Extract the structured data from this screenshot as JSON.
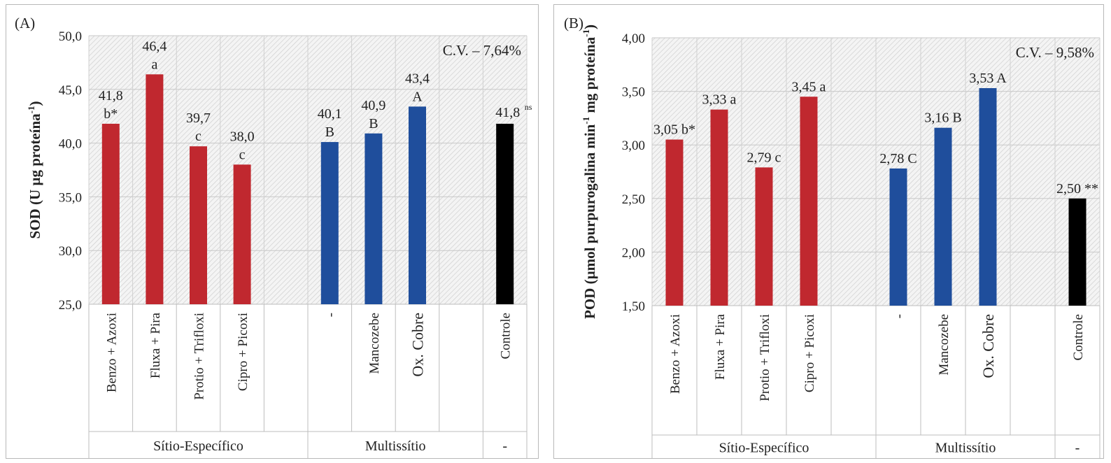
{
  "charts": [
    {
      "panel_label": "(A)",
      "cv": "C.V. – 7,64%",
      "ylabel_main": "SOD (U µg proteína",
      "ylabel_sup": "-1",
      "ylabel_end": ")",
      "yticks": [
        "50,0",
        "45,0",
        "40,0",
        "35,0",
        "30,0",
        "25,0"
      ],
      "groups": [
        "Sítio-Específico",
        "Multissítio",
        "-"
      ]
    },
    {
      "panel_label": "(B)",
      "cv": "C.V. – 9,58%",
      "ylabel_main": "POD (µmol purpurogalina  min",
      "ylabel_sup": "-1",
      "ylabel_mid": " mg proteína",
      "ylabel_sup2": "-1",
      "ylabel_end": ")",
      "yticks": [
        "4,00",
        "3,50",
        "3,00",
        "2,50",
        "2,00",
        "1,50"
      ],
      "groups": [
        "Sítio-Específico",
        "Multissítio",
        "-"
      ]
    }
  ],
  "chart_data": [
    {
      "type": "bar",
      "categories": [
        "Benzo + Azoxi",
        "Fluxa + Pira",
        "Protio + Trifloxi",
        "Cipro + Picoxi",
        "",
        "-",
        "Mancozebe",
        "Ox. Cobre",
        "",
        "Controle"
      ],
      "values": [
        41.8,
        46.4,
        39.7,
        38.0,
        null,
        40.1,
        40.9,
        43.4,
        null,
        41.8
      ],
      "value_labels": [
        "41,8",
        "46,4",
        "39,7",
        "38,0",
        "",
        "40,1",
        "40,9",
        "43,4",
        "",
        "41,8"
      ],
      "letters": [
        "b*",
        "a",
        "c",
        "c",
        "",
        "B",
        "B",
        "A",
        "",
        "ns"
      ],
      "bar_colors": [
        "#c0282f",
        "#c0282f",
        "#c0282f",
        "#c0282f",
        "",
        "#1f4e9c",
        "#1f4e9c",
        "#1f4e9c",
        "",
        "#000000"
      ],
      "group_spans": [
        {
          "label": "Sítio-Específico",
          "from": 0,
          "to": 4
        },
        {
          "label": "Multissítio",
          "from": 5,
          "to": 8
        },
        {
          "label": "-",
          "from": 9,
          "to": 9
        }
      ],
      "ylim": [
        25.0,
        50.0
      ],
      "ylabel": "SOD (U µg proteína-1)",
      "grid": true
    },
    {
      "type": "bar",
      "categories": [
        "Benzo + Azoxi",
        "Fluxa + Pira",
        "Protio + Trifloxi",
        "Cipro + Picoxi",
        "",
        "-",
        "Mancozebe",
        "Ox. Cobre",
        "",
        "Controle"
      ],
      "values": [
        3.05,
        3.33,
        2.79,
        3.45,
        null,
        2.78,
        3.16,
        3.53,
        null,
        2.5
      ],
      "value_labels": [
        "3,05 b*",
        "3,33 a",
        "2,79 c",
        "3,45 a",
        "",
        "2,78 C",
        "3,16 B",
        "3,53 A",
        "",
        "2,50 **"
      ],
      "bar_colors": [
        "#c0282f",
        "#c0282f",
        "#c0282f",
        "#c0282f",
        "",
        "#1f4e9c",
        "#1f4e9c",
        "#1f4e9c",
        "",
        "#000000"
      ],
      "group_spans": [
        {
          "label": "Sítio-Específico",
          "from": 0,
          "to": 4
        },
        {
          "label": "Multissítio",
          "from": 5,
          "to": 8
        },
        {
          "label": "-",
          "from": 9,
          "to": 9
        }
      ],
      "ylim": [
        1.5,
        4.0
      ],
      "ylabel": "POD (µmol purpurogalina min-1 mg proteína-1)",
      "grid": true
    }
  ]
}
